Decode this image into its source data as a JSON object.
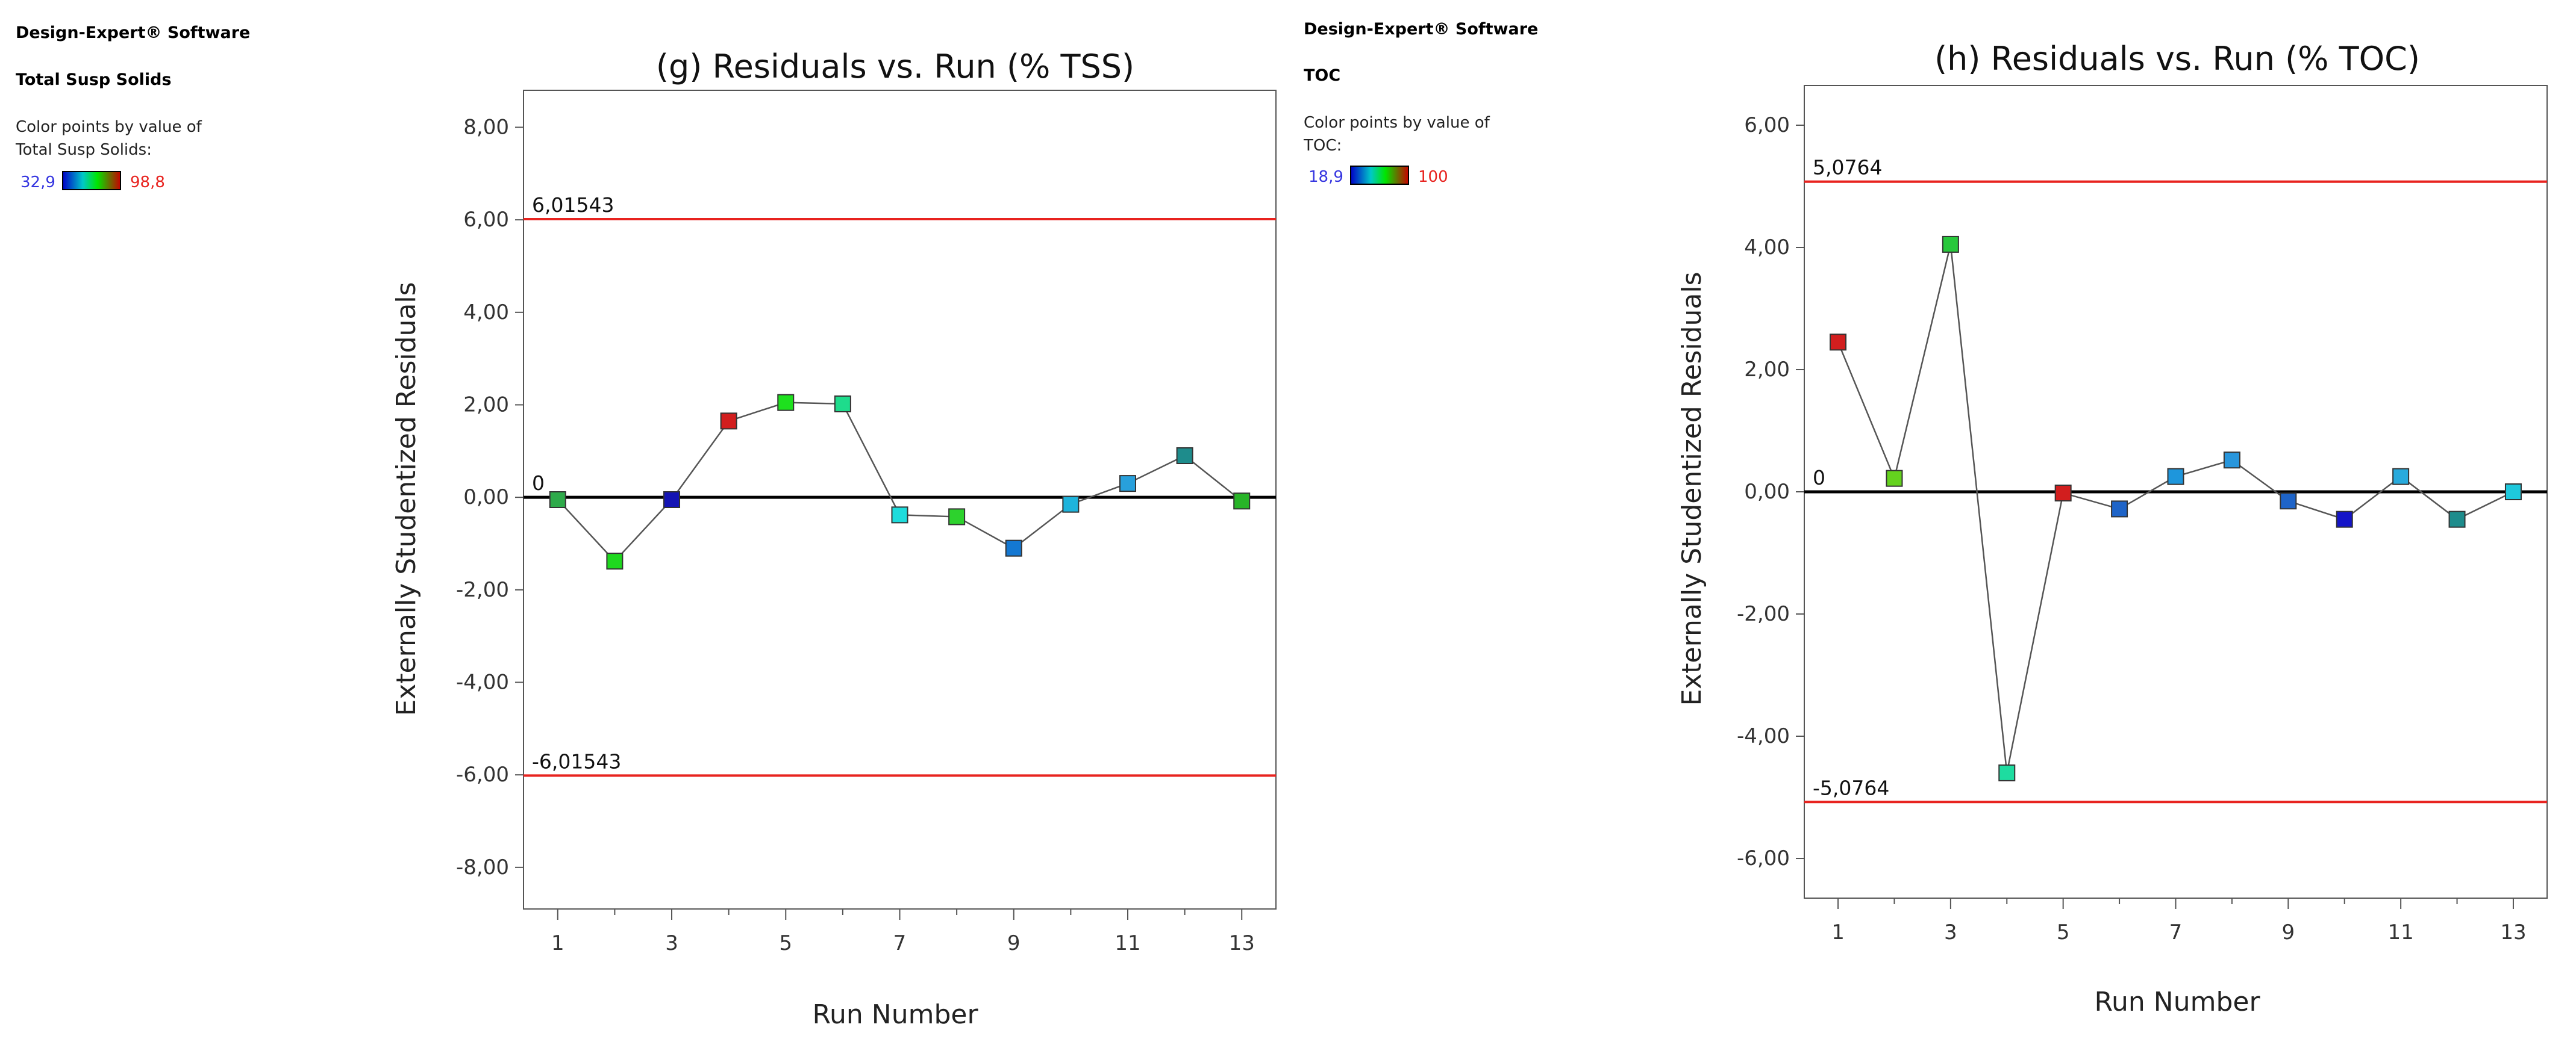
{
  "panels": [
    {
      "sidebar": {
        "software": "Design-Expert® Software",
        "response": "Total Susp Solids",
        "color_note_line1": "Color points by value of",
        "color_note_line2": "Total Susp Solids:",
        "color_min": "32,9",
        "color_max": "98,8"
      }
    },
    {
      "sidebar": {
        "software": "Design-Expert® Software",
        "response": "TOC",
        "color_note_line1": "Color points by value of",
        "color_note_line2": "TOC:",
        "color_min": "18,9",
        "color_max": "100"
      }
    }
  ],
  "colors": {
    "limit_line": "#e8231f",
    "zero_line": "#000000",
    "connector": "#555555",
    "axis": "#555555",
    "min_label": "#3535e0",
    "max_label": "#e8231f",
    "gradient": [
      "#0000c8",
      "#00c8c8",
      "#00e600",
      "#c80000"
    ]
  },
  "chart_data": [
    {
      "type": "line",
      "title": "(g) Residuals vs. Run (% TSS)",
      "xlabel": "Run Number",
      "ylabel": "Externally Studentized Residuals",
      "xlim": [
        0.4,
        13.6
      ],
      "ylim": [
        -8.9,
        8.8
      ],
      "x_ticks": [
        1,
        3,
        5,
        7,
        9,
        11,
        13
      ],
      "x_tick_labels": [
        "1",
        "3",
        "5",
        "7",
        "9",
        "11",
        "13"
      ],
      "x_minor_ticks": [
        2,
        4,
        6,
        8,
        10,
        12
      ],
      "y_ticks": [
        8,
        6,
        4,
        2,
        0,
        -2,
        -4,
        -6,
        -8
      ],
      "y_tick_labels": [
        "8,00",
        "6,00",
        "4,00",
        "2,00",
        "0,00",
        "-2,00",
        "-4,00",
        "-6,00",
        "-8,00"
      ],
      "limits": [
        {
          "value": 6.01543,
          "label": "6,01543"
        },
        {
          "value": 0,
          "label": "0"
        },
        {
          "value": -6.01543,
          "label": "-6,01543"
        }
      ],
      "runs": [
        1,
        2,
        3,
        4,
        5,
        6,
        7,
        8,
        9,
        10,
        11,
        12,
        13
      ],
      "values": [
        -0.05,
        -1.38,
        -0.05,
        1.65,
        2.05,
        2.02,
        -0.38,
        -0.42,
        -1.1,
        -0.15,
        0.3,
        0.9,
        -0.08
      ],
      "point_colors": [
        "#2eaa4a",
        "#1ed81e",
        "#1414b4",
        "#d21e1e",
        "#1ee11e",
        "#1edc8c",
        "#1edcdc",
        "#2dd22d",
        "#1478d2",
        "#1eb4dc",
        "#28a0dc",
        "#1e8c8c",
        "#28b428"
      ]
    },
    {
      "type": "line",
      "title": "(h) Residuals vs. Run (% TOC)",
      "xlabel": "Run Number",
      "ylabel": "Externally Studentized Residuals",
      "xlim": [
        0.4,
        13.6
      ],
      "ylim": [
        -6.65,
        6.65
      ],
      "x_ticks": [
        1,
        3,
        5,
        7,
        9,
        11,
        13
      ],
      "x_tick_labels": [
        "1",
        "3",
        "5",
        "7",
        "9",
        "11",
        "13"
      ],
      "x_minor_ticks": [
        2,
        4,
        6,
        8,
        10,
        12
      ],
      "y_ticks": [
        6,
        4,
        2,
        0,
        -2,
        -4,
        -6
      ],
      "y_tick_labels": [
        "6,00",
        "4,00",
        "2,00",
        "0,00",
        "-2,00",
        "-4,00",
        "-6,00"
      ],
      "limits": [
        {
          "value": 5.0764,
          "label": "5,0764"
        },
        {
          "value": 0,
          "label": "0"
        },
        {
          "value": -5.0764,
          "label": "-5,0764"
        }
      ],
      "runs": [
        1,
        2,
        3,
        4,
        5,
        6,
        7,
        8,
        9,
        10,
        11,
        12,
        13
      ],
      "values": [
        2.45,
        0.22,
        4.05,
        -4.6,
        -0.02,
        -0.28,
        0.25,
        0.52,
        -0.15,
        -0.45,
        0.25,
        -0.45,
        0.0
      ],
      "point_colors": [
        "#d21e1e",
        "#64d21e",
        "#28c83c",
        "#1edca0",
        "#d21e1e",
        "#1e64c8",
        "#1e96dc",
        "#2896dc",
        "#1e64c8",
        "#1414c8",
        "#28aadc",
        "#1e8c8c",
        "#1ec8dc"
      ]
    }
  ]
}
